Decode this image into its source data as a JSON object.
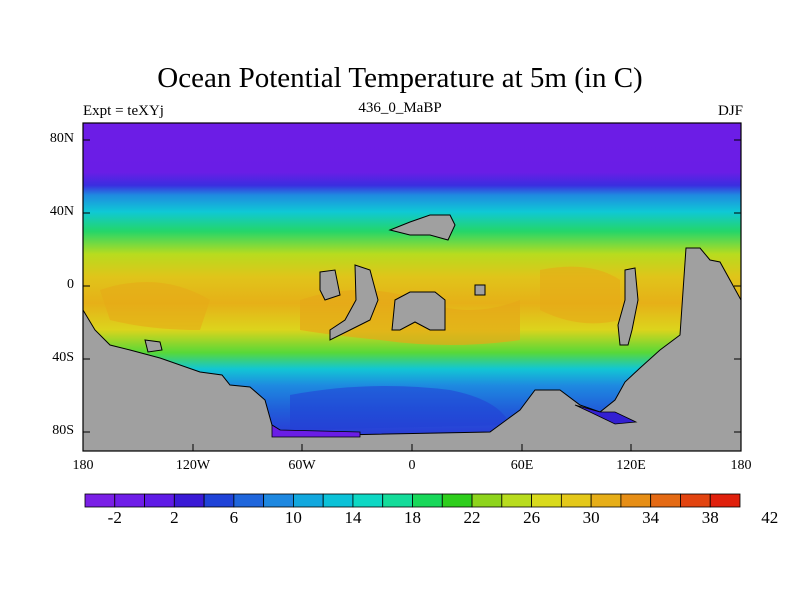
{
  "title": "Ocean Potential Temperature at 5m (in C)",
  "left_label": "Expt = teXYj",
  "center_label": "436_0_MaBP",
  "right_label": "DJF",
  "y_ticks": [
    "80N",
    "40N",
    "0",
    "40S",
    "80S"
  ],
  "x_ticks": [
    "180",
    "120W",
    "60W",
    "0",
    "60E",
    "120E",
    "180"
  ],
  "colorbar": {
    "labels": [
      "-2",
      "2",
      "6",
      "10",
      "14",
      "18",
      "22",
      "26",
      "30",
      "34",
      "38",
      "42"
    ],
    "colors": [
      "#7a1fe6",
      "#6f1ee8",
      "#5f1be6",
      "#3a1ad6",
      "#1f43d8",
      "#1f66dc",
      "#1e88e0",
      "#12a8de",
      "#0cc2d8",
      "#0ed8c4",
      "#14dc9a",
      "#18d85a",
      "#2ece1c",
      "#8ed41c",
      "#b8dc1e",
      "#d9da1c",
      "#e4c81a",
      "#e6ae18",
      "#e68e16",
      "#e46a14",
      "#e24410",
      "#e0200c"
    ]
  },
  "land_color": "#a0a0a0"
}
